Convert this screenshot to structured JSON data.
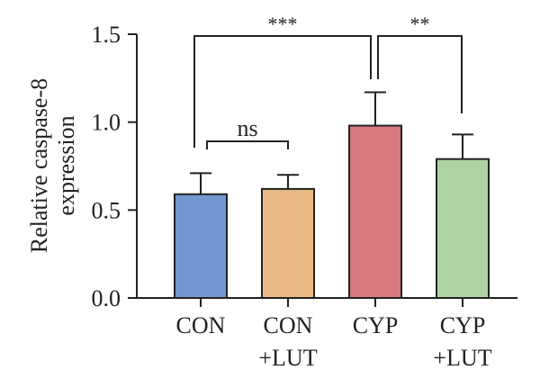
{
  "chart_data": {
    "type": "bar",
    "categories": [
      [
        "CON"
      ],
      [
        "CON",
        "+LUT"
      ],
      [
        "CYP"
      ],
      [
        "CYP",
        "+LUT"
      ]
    ],
    "values": [
      0.59,
      0.62,
      0.98,
      0.79
    ],
    "errors": [
      0.12,
      0.08,
      0.19,
      0.14
    ],
    "colors": [
      "#7398d1",
      "#ebb985",
      "#d97a80",
      "#afd3a3"
    ],
    "ylabel": [
      "Relative caspase-8",
      "expression"
    ],
    "ylim": [
      0,
      1.5
    ],
    "yticks": [
      "0.0",
      "0.5",
      "1.0",
      "1.5"
    ],
    "grid": false,
    "comparisons": [
      {
        "from": 0,
        "to": 1,
        "label": "ns"
      },
      {
        "from": 0,
        "to": 2,
        "label": "***"
      },
      {
        "from": 2,
        "to": 3,
        "label": "**"
      }
    ]
  }
}
